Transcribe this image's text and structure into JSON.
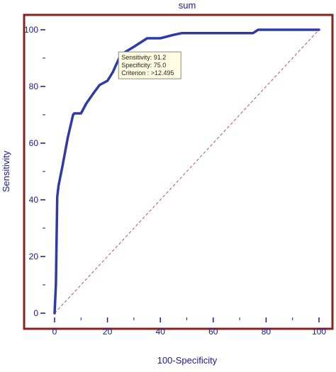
{
  "chart_data": {
    "type": "line",
    "title": "sum",
    "xlabel": "100-Specificity",
    "ylabel": "Sensitivity",
    "xlim": [
      0,
      100
    ],
    "ylim": [
      0,
      100
    ],
    "x_ticks": [
      "0",
      "20",
      "40",
      "60",
      "80",
      "100"
    ],
    "y_ticks": [
      "0",
      "20",
      "40",
      "60",
      "80",
      "100"
    ],
    "grid": false,
    "series": [
      {
        "color": "#2e3aa6",
        "style": "solid",
        "x": [
          0,
          0.5,
          1,
          1.5,
          3,
          5,
          7,
          7.5,
          10,
          12,
          15,
          17,
          20,
          22,
          25,
          30,
          35,
          40,
          45,
          48,
          60,
          70,
          75,
          77,
          80,
          100
        ],
        "y": [
          0,
          10,
          41,
          45,
          52,
          62,
          70,
          70.5,
          70.5,
          74,
          78,
          80.5,
          82,
          85,
          91.2,
          94,
          97,
          97,
          98.2,
          98.8,
          98.8,
          98.8,
          98.8,
          100,
          100,
          100
        ]
      },
      {
        "color": "#c05050",
        "style": "dashed",
        "x": [
          0,
          100
        ],
        "y": [
          0,
          100
        ]
      }
    ],
    "annotation": {
      "x": 25,
      "y": 91.2,
      "lines": [
        "Sensitivity: 91.2",
        "Specificity: 75.0",
        "Criterion : >12.495"
      ]
    },
    "colors": {
      "frame": "#8b2020",
      "text": "#1a1a8c",
      "curve": "#2e3aa6",
      "reference": "#c05050",
      "tooltip_bg": "#fffde1",
      "tooltip_border": "#8a8a8a"
    }
  }
}
